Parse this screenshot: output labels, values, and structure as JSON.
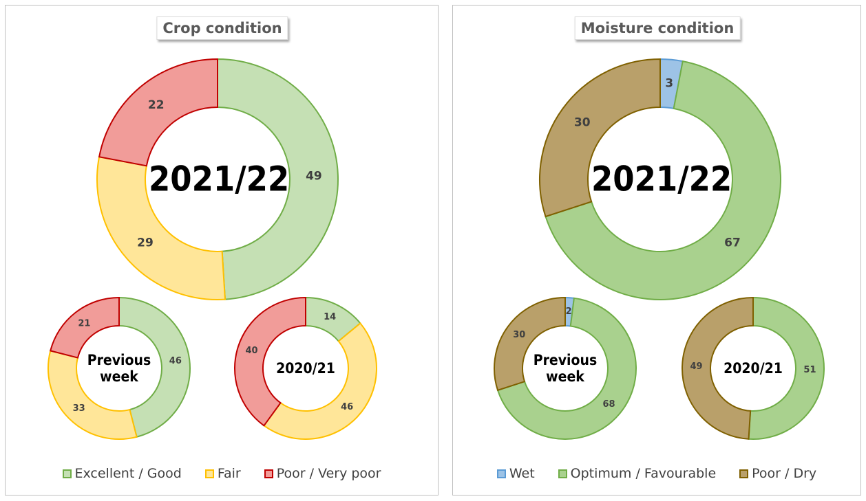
{
  "chart_data": [
    {
      "type": "donut",
      "title": "Crop condition",
      "categories": [
        "2021/22",
        "Previous week",
        "2020/21"
      ],
      "series": [
        {
          "name": "Excellent / Good",
          "color": "#c5e0b4",
          "edge": "#70ad47",
          "values": [
            49,
            46,
            14
          ]
        },
        {
          "name": "Fair",
          "color": "#ffe699",
          "edge": "#ffc000",
          "values": [
            29,
            33,
            46
          ]
        },
        {
          "name": "Poor / Very poor",
          "color": "#f19c99",
          "edge": "#c00000",
          "values": [
            22,
            21,
            40
          ]
        }
      ]
    },
    {
      "type": "donut",
      "title": "Moisture condition",
      "categories": [
        "2021/22",
        "Previous week",
        "2020/21"
      ],
      "series": [
        {
          "name": "Wet",
          "color": "#9dc3e6",
          "edge": "#5b9bd5",
          "values": [
            3,
            2,
            0
          ]
        },
        {
          "name": "Optimum / Favourable",
          "color": "#a9d18e",
          "edge": "#70ad47",
          "values": [
            67,
            68,
            51
          ]
        },
        {
          "name": "Poor / Dry",
          "color": "#b9a06a",
          "edge": "#7f6000",
          "values": [
            30,
            30,
            49
          ]
        }
      ]
    }
  ]
}
